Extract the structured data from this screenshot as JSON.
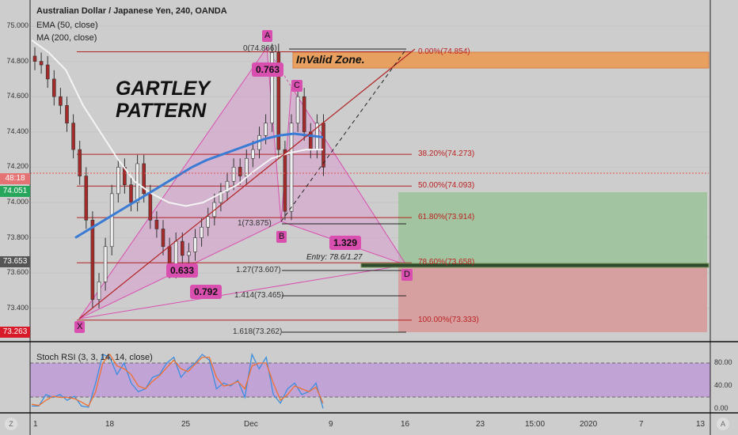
{
  "header": {
    "title": "Australian Dollar / Japanese Yen, 240, OANDA",
    "ema": "EMA (50, close)",
    "ma": "MA (200, close)"
  },
  "annotations": {
    "pattern_line1": "GARTLEY",
    "pattern_line2": "PATTERN",
    "invalid_zone": "InValid Zone.",
    "entry": "Entry: 78.6/1.27",
    "points": {
      "X": "X",
      "A": "A",
      "B": "B",
      "C": "C",
      "D": "D"
    },
    "ratios": {
      "ac": "0.763",
      "xb": "0.633",
      "bd": "1.329",
      "xd": "0.792"
    }
  },
  "fib_levels": [
    "0.00%(74.854)",
    "38.20%(74.273)",
    "50.00%(74.093)",
    "61.80%(73.914)",
    "78.60%(73.658)",
    "100.00%(73.333)"
  ],
  "extensions": [
    "0(74.866)",
    "1(73.875)",
    "1.27(73.607)",
    "1.414(73.465)",
    "1.618(73.262)"
  ],
  "price_axis": [
    "75.000",
    "74.800",
    "74.600",
    "74.400",
    "74.200",
    "74.000",
    "73.800",
    "73.600",
    "73.400"
  ],
  "badges": {
    "countdown": "48:18",
    "ma_value": "74.051",
    "entry_price": "73.653",
    "low_price": "73.263"
  },
  "stoch": {
    "title": "Stoch RSI (3, 3, 14, 14, close)",
    "levels": [
      "80.00",
      "40.00",
      "0.00"
    ]
  },
  "time_axis": [
    "1",
    "18",
    "25",
    "Dec",
    "9",
    "16",
    "23",
    "15:00",
    "2020",
    "7",
    "13"
  ],
  "buttons": {
    "left": "Z",
    "right": "A"
  },
  "colors": {
    "bg": "#cdcdcd",
    "ema": "#3a7bd5",
    "ma": "#f4f4f4",
    "pattern": "#d94fb0",
    "fib": "#b22222",
    "invalid": "#e8a060",
    "target": "#a3c4a0",
    "stop": "#d6a0a0",
    "stoch_band": "#c2a3d6"
  },
  "chart_data": {
    "type": "candlestick",
    "title": "Australian Dollar / Japanese Yen, 240, OANDA",
    "ylim": [
      73.2,
      75.05
    ],
    "closes": [
      74.8,
      74.78,
      74.7,
      74.6,
      74.55,
      74.45,
      74.3,
      74.15,
      73.9,
      73.45,
      73.55,
      73.75,
      74.05,
      74.2,
      74.1,
      74.0,
      74.22,
      74.05,
      73.9,
      73.85,
      73.75,
      73.62,
      73.78,
      73.7,
      73.72,
      73.8,
      73.86,
      73.92,
      74.0,
      74.06,
      74.12,
      74.2,
      74.15,
      74.25,
      74.3,
      74.38,
      74.45,
      74.85,
      74.3,
      73.95,
      74.45,
      74.6,
      74.4,
      74.3,
      74.45,
      74.2
    ],
    "ema50": [
      73.8,
      73.85,
      73.9,
      73.95,
      74.0,
      74.05,
      74.1,
      74.15,
      74.2,
      74.24,
      74.27,
      74.3,
      74.33,
      74.36,
      74.38,
      74.39,
      74.38,
      74.37
    ],
    "ma200": [
      74.92,
      74.85,
      74.75,
      74.55,
      74.4,
      74.25,
      74.12,
      74.05,
      74.0,
      73.98,
      74.0,
      74.05,
      74.1,
      74.18,
      74.25,
      74.28,
      74.3,
      74.3
    ],
    "stoch_k": [
      5,
      5,
      25,
      20,
      25,
      15,
      22,
      5,
      3,
      45,
      95,
      90,
      60,
      80,
      45,
      30,
      35,
      55,
      60,
      80,
      90,
      55,
      70,
      80,
      95,
      85,
      35,
      45,
      40,
      50,
      20,
      95,
      70,
      90,
      25,
      10,
      35,
      45,
      25,
      30,
      45,
      1
    ],
    "stoch_d": [
      8,
      6,
      15,
      22,
      20,
      20,
      18,
      12,
      5,
      30,
      80,
      95,
      75,
      70,
      60,
      40,
      35,
      48,
      58,
      72,
      85,
      70,
      65,
      78,
      90,
      90,
      55,
      40,
      42,
      48,
      35,
      75,
      80,
      80,
      45,
      15,
      25,
      40,
      35,
      30,
      38,
      10
    ]
  }
}
